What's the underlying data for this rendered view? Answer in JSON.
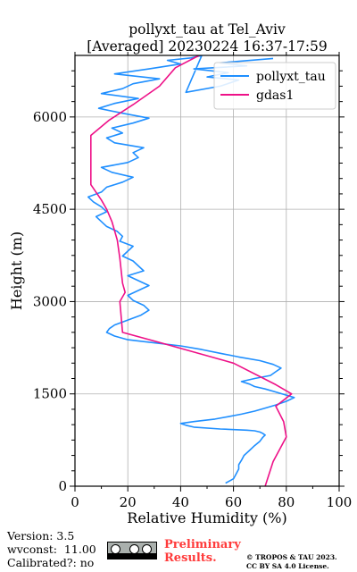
{
  "chart_data": {
    "type": "line",
    "title_lines": [
      "pollyxt_tau at Tel_Aviv",
      "[Averaged] 20230224 16:37-17:59"
    ],
    "xlabel": "Relative Humidity (%)",
    "ylabel": "Height (m)",
    "xlim": [
      0,
      100
    ],
    "ylim": [
      0,
      7000
    ],
    "xticks": [
      0,
      20,
      40,
      60,
      80,
      100
    ],
    "yticks": [
      0,
      1500,
      3000,
      4500,
      6000
    ],
    "grid": true,
    "legend_placement": "top-right",
    "series": [
      {
        "name": "pollyxt_tau",
        "color": "#1f8fff",
        "x": [
          57,
          60,
          61,
          62,
          62,
          63,
          64,
          66,
          68,
          70,
          71,
          72,
          71,
          70,
          68,
          65,
          55,
          45,
          42,
          40,
          45,
          53,
          58,
          63,
          68,
          72,
          76,
          80,
          83,
          80,
          76,
          72,
          68,
          66,
          63,
          68,
          74,
          76,
          78,
          75,
          70,
          62,
          55,
          48,
          40,
          30,
          20,
          15,
          12,
          13,
          15,
          20,
          25,
          28,
          26,
          22,
          20,
          24,
          28,
          24,
          20,
          26,
          24,
          22,
          18,
          20,
          22,
          17,
          18,
          16,
          12,
          10,
          8,
          12,
          10,
          7,
          5,
          10,
          12,
          18,
          22,
          14,
          10,
          20,
          24,
          22,
          26,
          15,
          12,
          18,
          14,
          22,
          28,
          18,
          9,
          15,
          24,
          10,
          18,
          22,
          32,
          15,
          28,
          40,
          35,
          44,
          48,
          42,
          55,
          62,
          50,
          58,
          45,
          65,
          55,
          75
        ],
        "y": [
          50,
          120,
          200,
          280,
          350,
          420,
          500,
          580,
          660,
          730,
          790,
          830,
          860,
          880,
          900,
          910,
          930,
          960,
          990,
          1020,
          1050,
          1090,
          1130,
          1170,
          1220,
          1270,
          1320,
          1380,
          1440,
          1480,
          1530,
          1580,
          1620,
          1660,
          1700,
          1750,
          1800,
          1860,
          1920,
          1980,
          2040,
          2100,
          2160,
          2220,
          2280,
          2330,
          2380,
          2440,
          2500,
          2560,
          2620,
          2700,
          2780,
          2860,
          2940,
          3020,
          3100,
          3180,
          3260,
          3340,
          3420,
          3500,
          3580,
          3660,
          3740,
          3820,
          3900,
          3980,
          4060,
          4140,
          4220,
          4300,
          4380,
          4460,
          4540,
          4620,
          4700,
          4780,
          4860,
          4940,
          5020,
          5100,
          5180,
          5260,
          5340,
          5420,
          5500,
          5580,
          5660,
          5740,
          5820,
          5900,
          5980,
          6060,
          6140,
          6220,
          6300,
          6380,
          6460,
          6540,
          6620,
          6700,
          6780,
          6860,
          6920,
          6960,
          7000,
          6400,
          6500,
          6600,
          6650,
          6720,
          6780,
          6830,
          6880,
          6950
        ]
      },
      {
        "name": "gdas1",
        "color": "#ee1188",
        "x": [
          72,
          75,
          80,
          79,
          76,
          82,
          76,
          60,
          35,
          18,
          17,
          19,
          18,
          17,
          16,
          14,
          12,
          10,
          6,
          6,
          6,
          13,
          22,
          32,
          38,
          47
        ],
        "y": [
          0,
          400,
          800,
          1050,
          1300,
          1500,
          1650,
          2000,
          2300,
          2500,
          3000,
          3150,
          3300,
          3700,
          4000,
          4300,
          4500,
          4650,
          4900,
          5300,
          5700,
          5950,
          6200,
          6500,
          6800,
          7000
        ]
      }
    ]
  },
  "footer": {
    "version": "Version: 3.5",
    "wvconst": "wvconst:  11.00",
    "calibrated": "Calibrated?: no",
    "preliminary": "Preliminary\nResults.",
    "copyright": "© TROPOS & TAU 2023.\nCC BY SA 4.0 License."
  }
}
